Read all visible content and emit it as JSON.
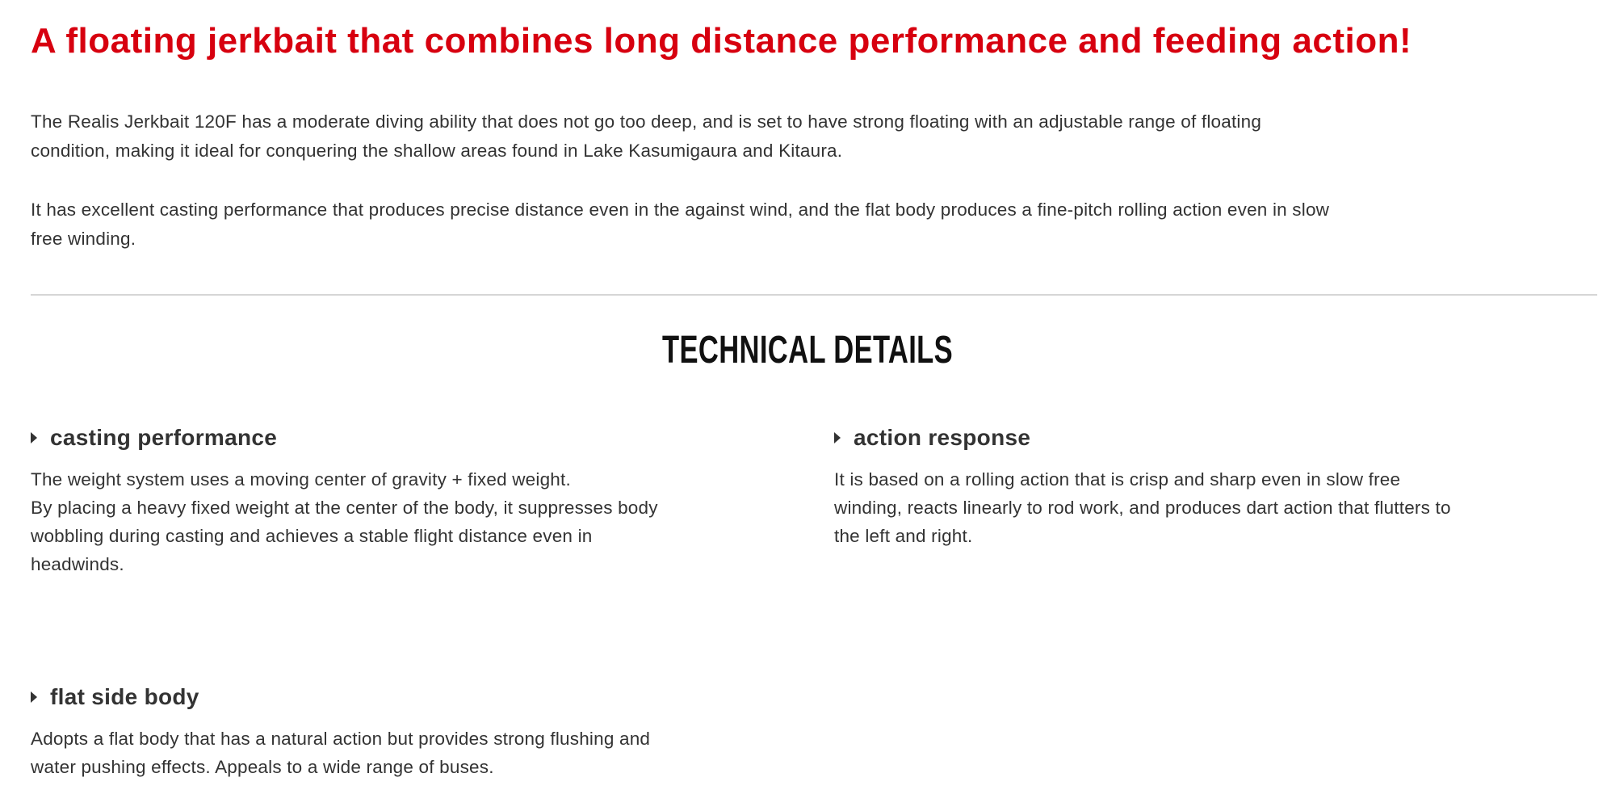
{
  "headline": "A floating jerkbait that combines long distance performance and feeding action!",
  "intro": [
    [
      "The Realis Jerkbait 120F has a moderate diving ability that does not go too deep, and is set to have strong floating with an adjustable range of floating",
      "condition, making it ideal for conquering the shallow areas found in Lake Kasumigaura and Kitaura."
    ],
    [
      "It has excellent casting performance that produces precise distance even in the against wind, and the flat body produces a fine-pitch rolling action even in slow",
      "free winding."
    ]
  ],
  "section_title": "TECHNICAL DETAILS",
  "colors": {
    "headline": "#d7000f",
    "text": "#333333",
    "divider": "#d6d6d6"
  },
  "features": [
    {
      "title": "casting performance",
      "icon": "caret-right-icon",
      "lines": [
        "The weight system uses a moving center of gravity + fixed weight.",
        "By placing a heavy fixed weight at the center of the body, it suppresses body",
        "wobbling during casting and achieves a stable flight distance even in",
        "headwinds."
      ]
    },
    {
      "title": "action response",
      "icon": "caret-right-icon",
      "lines": [
        "It is based on a rolling action that is crisp and sharp even in slow free",
        "winding, reacts linearly to rod work, and produces dart action that flutters to",
        "the left and right."
      ]
    },
    {
      "title": "flat side body",
      "icon": "caret-right-icon",
      "lines": [
        "Adopts a flat body that has a natural action but provides strong flushing and",
        "water pushing effects. Appeals to a wide range of buses."
      ]
    }
  ]
}
